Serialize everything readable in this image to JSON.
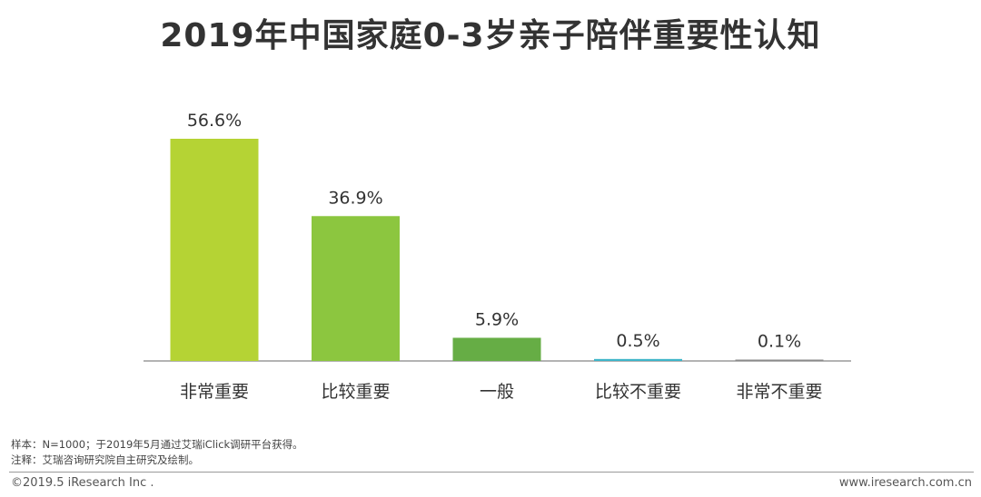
{
  "chart_data": {
    "type": "bar",
    "title": "2019年中国家庭0-3岁亲子陪伴重要性认知",
    "categories": [
      "非常重要",
      "比较重要",
      "一般",
      "比较不重要",
      "非常不重要"
    ],
    "values": [
      56.6,
      36.9,
      5.9,
      0.5,
      0.1
    ],
    "value_labels": [
      "56.6%",
      "36.9%",
      "5.9%",
      "0.5%",
      "0.1%"
    ],
    "colors": [
      "#b5d334",
      "#8cc63f",
      "#66ad45",
      "#3db5c9",
      "#8a8a8a"
    ],
    "xlabel": "",
    "ylabel": "",
    "grid": false,
    "legend": "none"
  },
  "notes": {
    "sample": "样本：N=1000；于2019年5月通过艾瑞iClick调研平台获得。",
    "note": "注释：艾瑞咨询研究院自主研究及绘制。"
  },
  "footer": {
    "copyright": "©2019.5 iResearch Inc .",
    "website": "www.iresearch.com.cn"
  }
}
